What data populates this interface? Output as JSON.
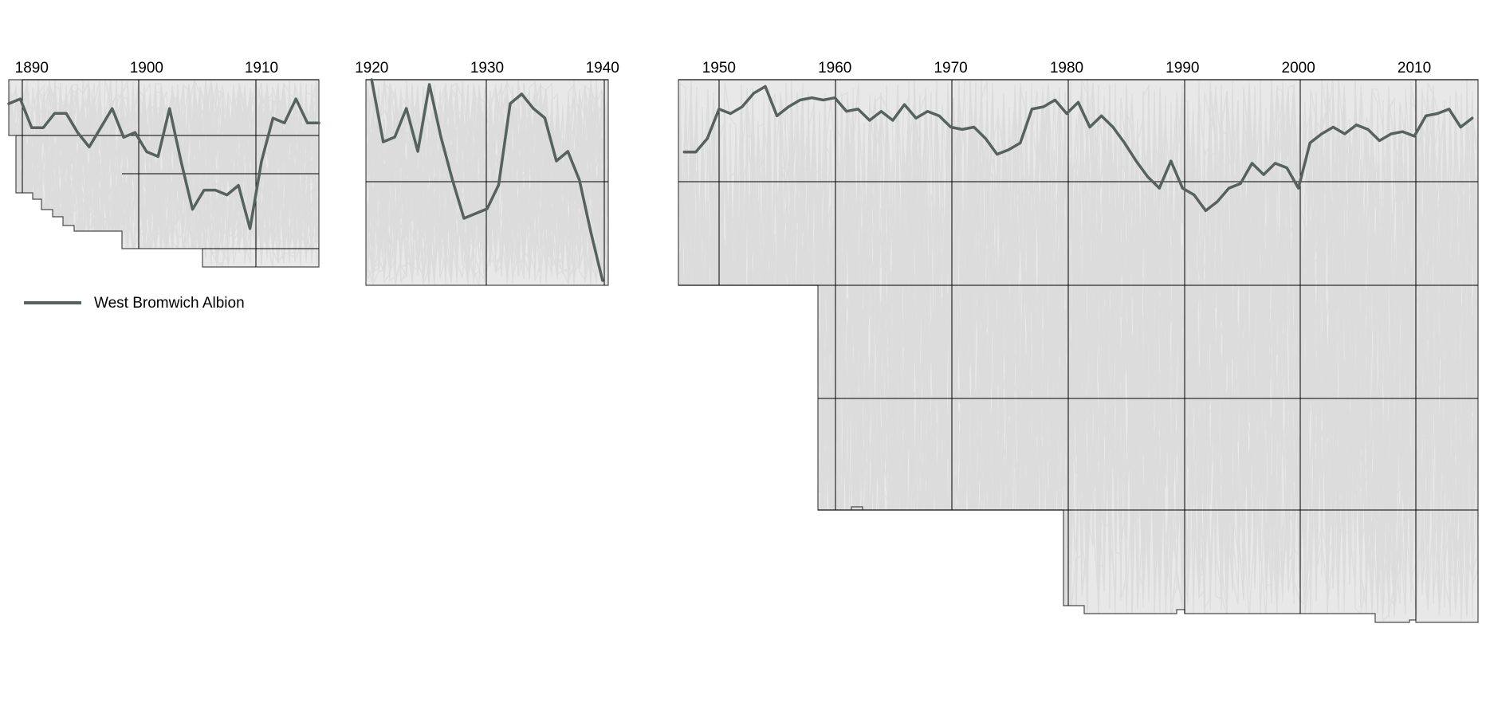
{
  "chart_data": [
    {
      "type": "line",
      "title": "",
      "xlabel": "",
      "ylabel": "",
      "xlim": [
        1888,
        1915
      ],
      "xticks": [
        1890,
        1900,
        1910
      ],
      "ylim": [
        1,
        40
      ],
      "y_inverted": true,
      "grid": true,
      "series": [
        {
          "name": "West Bromwich Albion",
          "x": [
            1888,
            1889,
            1890,
            1891,
            1892,
            1893,
            1894,
            1895,
            1896,
            1897,
            1898,
            1899,
            1900,
            1901,
            1902,
            1903,
            1904,
            1905,
            1906,
            1907,
            1908,
            1909,
            1910,
            1911,
            1912,
            1913,
            1914,
            1915
          ],
          "y": [
            6,
            5,
            11,
            11,
            8,
            8,
            12,
            15,
            11,
            7,
            13,
            12,
            16,
            17,
            7,
            18,
            28,
            24,
            24,
            25,
            23,
            32,
            18,
            9,
            10,
            5,
            10,
            10
          ]
        }
      ]
    },
    {
      "type": "line",
      "title": "",
      "xlabel": "",
      "ylabel": "",
      "xlim": [
        1919.5,
        1940.5
      ],
      "xticks": [
        1920,
        1930,
        1940
      ],
      "ylim": [
        1,
        44
      ],
      "y_inverted": true,
      "grid": true,
      "series": [
        {
          "name": "West Bromwich Albion",
          "x": [
            1920,
            1921,
            1922,
            1923,
            1924,
            1925,
            1926,
            1927,
            1928,
            1929,
            1930,
            1931,
            1932,
            1933,
            1934,
            1935,
            1936,
            1937,
            1938,
            1939,
            1940
          ],
          "y": [
            1,
            14,
            13,
            7,
            16,
            2,
            13,
            22,
            30,
            29,
            28,
            23,
            6,
            4,
            7,
            9,
            18,
            16,
            22,
            33,
            43
          ]
        }
      ]
    },
    {
      "type": "line",
      "title": "",
      "xlabel": "",
      "ylabel": "",
      "xlim": [
        1946.5,
        2015.5
      ],
      "xticks": [
        1950,
        1960,
        1970,
        1980,
        1990,
        2000,
        2010
      ],
      "ylim": [
        1,
        92
      ],
      "y_inverted": true,
      "grid": true,
      "series": [
        {
          "name": "West Bromwich Albion",
          "x": [
            1947,
            1948,
            1949,
            1950,
            1951,
            1952,
            1953,
            1954,
            1955,
            1956,
            1957,
            1958,
            1959,
            1960,
            1961,
            1962,
            1963,
            1964,
            1965,
            1966,
            1967,
            1968,
            1969,
            1970,
            1971,
            1972,
            1973,
            1974,
            1975,
            1976,
            1977,
            1978,
            1979,
            1980,
            1981,
            1982,
            1983,
            1984,
            1985,
            1986,
            1987,
            1988,
            1989,
            1990,
            1991,
            1992,
            1993,
            1994,
            1995,
            1996,
            1997,
            1998,
            1999,
            2000,
            2001,
            2002,
            2003,
            2004,
            2005,
            2006,
            2007,
            2008,
            2009,
            2010,
            2011,
            2012,
            2013,
            2014,
            2015
          ],
          "y": [
            33,
            33,
            27,
            14,
            16,
            13,
            7,
            4,
            17,
            13,
            10,
            9,
            10,
            9,
            15,
            14,
            19,
            15,
            19,
            12,
            18,
            15,
            17,
            22,
            23,
            22,
            27,
            34,
            32,
            29,
            14,
            13,
            10,
            16,
            11,
            22,
            17,
            22,
            29,
            37,
            44,
            49,
            37,
            49,
            52,
            59,
            55,
            49,
            47,
            38,
            43,
            38,
            40,
            49,
            29,
            25,
            22,
            25,
            21,
            23,
            28,
            25,
            24,
            26,
            17,
            16,
            14,
            22,
            18
          ]
        }
      ]
    }
  ],
  "legend": {
    "label": "West Bromwich Albion",
    "placement": "below-left"
  },
  "colors": {
    "highlight": "#56625e",
    "background_lines": "#dcdcdc",
    "grid": "#000000",
    "frame": "#4a4a4a"
  }
}
